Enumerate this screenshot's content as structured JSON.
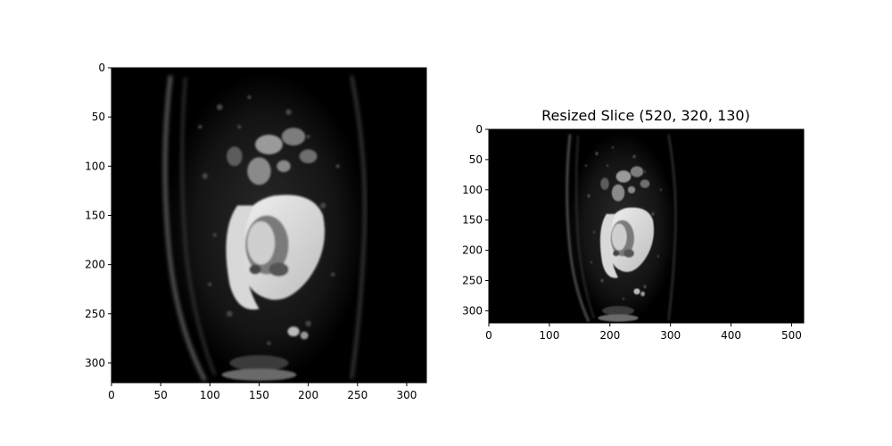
{
  "figure": {
    "panels": [
      {
        "id": "left",
        "title": "",
        "x_ticks": [
          0,
          50,
          100,
          150,
          200,
          250,
          300
        ],
        "y_ticks": [
          0,
          50,
          100,
          150,
          200,
          250,
          300
        ],
        "xlim": [
          0,
          320
        ],
        "ylim": [
          0,
          320
        ],
        "image_content": "grayscale sagittal MRI slice, dark background"
      },
      {
        "id": "right",
        "title": "Resized Slice (520, 320, 130)",
        "x_ticks": [
          0,
          100,
          200,
          300,
          400,
          500
        ],
        "y_ticks": [
          0,
          50,
          100,
          150,
          200,
          250,
          300
        ],
        "xlim": [
          0,
          520
        ],
        "ylim": [
          0,
          320
        ],
        "image_content": "grayscale sagittal MRI slice resized horizontally, dark background"
      }
    ],
    "colors": {
      "background": "#ffffff",
      "image_bg": "#000000",
      "axis": "#000000"
    }
  }
}
